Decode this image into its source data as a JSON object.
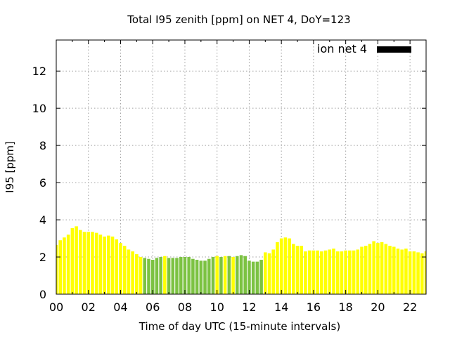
{
  "chart_data": {
    "type": "bar",
    "title": "Total I95 zenith [ppm] on NET 4, DoY=123",
    "xlabel": "Time of day UTC (15-minute intervals)",
    "ylabel": "I95 [ppm]",
    "xlim": [
      0,
      23
    ],
    "ylim": [
      0,
      13.67
    ],
    "x_ticks": [
      "00",
      "02",
      "04",
      "06",
      "08",
      "10",
      "12",
      "14",
      "16",
      "18",
      "20",
      "22"
    ],
    "y_ticks": [
      "0",
      "2",
      "4",
      "6",
      "8",
      "10",
      "12"
    ],
    "grid": true,
    "legend": {
      "label": "ion net 4",
      "position": "top-right",
      "color": "#000000"
    },
    "colors": {
      "yellow": "#ffff00",
      "green": "#7cc242"
    },
    "series": [
      {
        "bin_hours": 0.25,
        "values": [
          2.65,
          2.9,
          3.05,
          3.2,
          3.55,
          3.65,
          3.45,
          3.35,
          3.35,
          3.35,
          3.3,
          3.2,
          3.1,
          3.15,
          3.1,
          2.95,
          2.75,
          2.6,
          2.4,
          2.3,
          2.15,
          2.0,
          1.95,
          1.9,
          1.85,
          1.95,
          2.0,
          2.05,
          1.95,
          1.95,
          1.95,
          2.0,
          2.0,
          2.0,
          1.9,
          1.85,
          1.8,
          1.8,
          1.9,
          2.0,
          2.05,
          2.0,
          2.05,
          2.05,
          2.0,
          2.05,
          2.1,
          2.05,
          1.8,
          1.75,
          1.75,
          1.85,
          2.25,
          2.2,
          2.4,
          2.8,
          3.0,
          3.05,
          3.0,
          2.7,
          2.6,
          2.6,
          2.3,
          2.35,
          2.35,
          2.35,
          2.3,
          2.35,
          2.4,
          2.45,
          2.3,
          2.3,
          2.35,
          2.35,
          2.35,
          2.4,
          2.55,
          2.6,
          2.7,
          2.85,
          2.75,
          2.8,
          2.7,
          2.6,
          2.55,
          2.45,
          2.4,
          2.45,
          2.3,
          2.3,
          2.25,
          2.2,
          2.3
        ],
        "colors": [
          "yellow",
          "yellow",
          "yellow",
          "yellow",
          "yellow",
          "yellow",
          "yellow",
          "yellow",
          "yellow",
          "yellow",
          "yellow",
          "yellow",
          "yellow",
          "yellow",
          "yellow",
          "yellow",
          "yellow",
          "yellow",
          "yellow",
          "yellow",
          "yellow",
          "yellow",
          "green",
          "green",
          "green",
          "green",
          "green",
          "yellow",
          "green",
          "green",
          "green",
          "green",
          "green",
          "green",
          "green",
          "green",
          "green",
          "green",
          "green",
          "green",
          "yellow",
          "green",
          "yellow",
          "green",
          "yellow",
          "green",
          "green",
          "green",
          "green",
          "green",
          "green",
          "green",
          "yellow",
          "yellow",
          "yellow",
          "yellow",
          "yellow",
          "yellow",
          "yellow",
          "yellow",
          "yellow",
          "yellow",
          "yellow",
          "yellow",
          "yellow",
          "yellow",
          "yellow",
          "yellow",
          "yellow",
          "yellow",
          "yellow",
          "yellow",
          "yellow",
          "yellow",
          "yellow",
          "yellow",
          "yellow",
          "yellow",
          "yellow",
          "yellow",
          "yellow",
          "yellow",
          "yellow",
          "yellow",
          "yellow",
          "yellow",
          "yellow",
          "yellow",
          "yellow",
          "yellow",
          "yellow",
          "yellow",
          "yellow"
        ]
      }
    ]
  }
}
